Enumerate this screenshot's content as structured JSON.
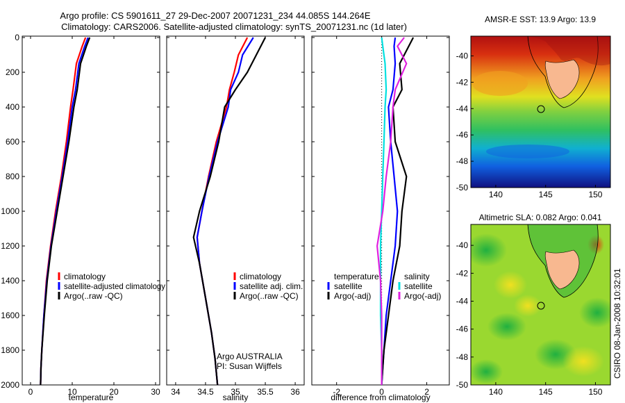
{
  "title_line1": "Argo profile: CS 5901611_27 29-Dec-2007 20071231_234 44.085S 144.264E",
  "title_line2": "Climatology: CARS2006. Satellite-adjusted climatology: synTS_20071231.nc (1d later)",
  "side_label": "CSIRO 08-Jan-2008 10:32:01",
  "colors": {
    "climatology": "#ff0000",
    "satellite": "#0000ff",
    "argo": "#000000",
    "sat_diff_salinity": "#00e0e0",
    "argo_diff_salinity": "#e020e0",
    "land": "#f8b890"
  },
  "chart_data": [
    {
      "type": "line",
      "xlabel": "temperature",
      "xlim": [
        -2,
        31
      ],
      "ylim": [
        0,
        2000
      ],
      "y_reversed": true,
      "xticks": [
        0,
        10,
        20,
        30
      ],
      "yticks": [
        0,
        200,
        400,
        600,
        800,
        1000,
        1200,
        1400,
        1600,
        1800,
        2000
      ],
      "legend": {
        "placement": "lower-right",
        "entries": [
          "climatology",
          "satellite-adjusted climatology",
          "Argo(..raw -QC)"
        ]
      },
      "series": [
        {
          "name": "climatology",
          "color": "#ff0000",
          "x": [
            13.2,
            12.4,
            11.0,
            10.2,
            9.6,
            8.6,
            7.4,
            6.0,
            4.8,
            3.8,
            3.2,
            2.7,
            2.5,
            2.4
          ],
          "y": [
            0,
            50,
            150,
            300,
            400,
            600,
            800,
            1000,
            1200,
            1400,
            1600,
            1800,
            1900,
            2000
          ]
        },
        {
          "name": "satellite-adjusted climatology",
          "color": "#0000ff",
          "x": [
            13.8,
            13.0,
            11.6,
            10.8,
            10.0,
            8.9,
            7.6,
            6.2,
            4.9,
            3.9,
            3.2,
            2.7,
            2.5,
            2.4
          ],
          "y": [
            0,
            50,
            150,
            300,
            400,
            600,
            800,
            1000,
            1200,
            1400,
            1600,
            1800,
            1900,
            2000
          ]
        },
        {
          "name": "Argo(..raw -QC)",
          "color": "#000000",
          "x": [
            14.2,
            13.4,
            12.0,
            11.2,
            10.4,
            9.2,
            7.8,
            6.4,
            5.0,
            4.0,
            3.3,
            2.7,
            2.5,
            2.4
          ],
          "y": [
            0,
            50,
            150,
            300,
            400,
            600,
            800,
            1000,
            1200,
            1400,
            1600,
            1800,
            1900,
            2000
          ]
        }
      ]
    },
    {
      "type": "line",
      "xlabel": "salinity",
      "xlim": [
        33.85,
        36.15
      ],
      "ylim": [
        0,
        2000
      ],
      "y_reversed": true,
      "xticks": [
        34,
        34.5,
        35,
        35.5,
        36
      ],
      "yticks": [
        0,
        200,
        400,
        600,
        800,
        1000,
        1200,
        1400,
        1600,
        1800,
        2000
      ],
      "legend": {
        "placement": "lower-right",
        "entries": [
          "climatology",
          "satellite adj. clim.",
          "Argo(..raw -QC)"
        ]
      },
      "annotation": [
        "Argo AUSTRALIA",
        "PI: Susan Wijffels"
      ],
      "series": [
        {
          "name": "climatology",
          "color": "#ff0000",
          "x": [
            35.2,
            35.05,
            34.98,
            34.9,
            34.85,
            34.68,
            34.55,
            34.44,
            34.36,
            34.4,
            34.5,
            34.6,
            34.66,
            34.7
          ],
          "y": [
            0,
            100,
            200,
            300,
            400,
            600,
            800,
            1000,
            1150,
            1300,
            1500,
            1700,
            1850,
            2000
          ]
        },
        {
          "name": "satellite adj. clim.",
          "color": "#0000ff",
          "x": [
            35.3,
            35.12,
            35.05,
            34.92,
            34.88,
            34.7,
            34.56,
            34.44,
            34.36,
            34.4,
            34.5,
            34.6,
            34.66,
            34.7
          ],
          "y": [
            0,
            100,
            200,
            300,
            400,
            600,
            800,
            1000,
            1150,
            1300,
            1500,
            1700,
            1850,
            2000
          ]
        },
        {
          "name": "Argo(..raw -QC)",
          "color": "#000000",
          "x": [
            35.5,
            35.35,
            35.2,
            35.0,
            34.82,
            34.72,
            34.58,
            34.4,
            34.3,
            34.4,
            34.5,
            34.6,
            34.66,
            34.7
          ],
          "y": [
            0,
            100,
            200,
            300,
            400,
            600,
            800,
            1000,
            1150,
            1300,
            1500,
            1700,
            1850,
            2000
          ]
        }
      ]
    },
    {
      "type": "line",
      "xlabel": "difference from climatology",
      "xlim": [
        -3.1,
        3.0
      ],
      "ylim": [
        0,
        2000
      ],
      "y_reversed": true,
      "xticks": [
        -2,
        0,
        2
      ],
      "yticks": [
        0,
        200,
        400,
        600,
        800,
        1000,
        1200,
        1400,
        1600,
        1800,
        2000
      ],
      "legend": {
        "placement": "lower-center",
        "group_titles": [
          "temperature",
          "salinity"
        ],
        "entries": [
          "satellite",
          "Argo(-adj)",
          "satellite",
          "Argo(-adj)"
        ]
      },
      "series": [
        {
          "name": "temperature satellite",
          "color": "#0000ff",
          "x": [
            0.6,
            0.55,
            0.6,
            0.5,
            0.3,
            0.4,
            0.55,
            0.7,
            0.6,
            0.4,
            0.2,
            0.1,
            0.05,
            0.0
          ],
          "y": [
            0,
            50,
            150,
            300,
            400,
            600,
            800,
            1000,
            1200,
            1400,
            1600,
            1800,
            1900,
            2000
          ]
        },
        {
          "name": "temperature Argo(-adj)",
          "color": "#000000",
          "x": [
            1.4,
            1.2,
            0.8,
            0.9,
            0.5,
            0.6,
            1.1,
            0.9,
            0.8,
            0.5,
            0.3,
            0.1,
            0.05,
            0.0
          ],
          "y": [
            0,
            50,
            150,
            300,
            400,
            600,
            800,
            1000,
            1200,
            1400,
            1600,
            1800,
            1900,
            2000
          ]
        },
        {
          "name": "salinity satellite",
          "color": "#00e0e0",
          "x": [
            0.0,
            0.05,
            0.15,
            0.2,
            0.15,
            0.1,
            0.05,
            0.0,
            -0.05,
            -0.05,
            -0.05,
            0.0,
            0.0,
            0.0
          ],
          "y": [
            0,
            50,
            150,
            300,
            400,
            600,
            800,
            1000,
            1200,
            1400,
            1600,
            1800,
            1900,
            2000
          ]
        },
        {
          "name": "salinity Argo(-adj)",
          "color": "#e020e0",
          "x": [
            1.0,
            0.7,
            1.1,
            0.6,
            0.5,
            0.4,
            0.2,
            0.05,
            -0.2,
            -0.05,
            0.0,
            0.0,
            0.0,
            0.0
          ],
          "y": [
            0,
            50,
            150,
            300,
            400,
            600,
            800,
            1000,
            1200,
            1400,
            1600,
            1800,
            1900,
            2000
          ]
        }
      ]
    },
    {
      "type": "heatmap",
      "title": "AMSR-E SST: 13.9 Argo: 13.9",
      "xlim": [
        137.5,
        151.5
      ],
      "ylim": [
        -50,
        -38.5
      ],
      "xticks": [
        140,
        145,
        150
      ],
      "yticks": [
        -40,
        -42,
        -44,
        -46,
        -48,
        -50
      ],
      "argo_position": [
        144.264,
        -44.085
      ]
    },
    {
      "type": "heatmap",
      "title": "Altimetric SLA: 0.082 Argo: 0.041",
      "xlim": [
        137.5,
        151.5
      ],
      "ylim": [
        -50,
        -38.5
      ],
      "xticks": [
        140,
        145,
        150
      ],
      "yticks": [
        -40,
        -42,
        -44,
        -46,
        -48,
        -50
      ],
      "argo_position": [
        144.264,
        -44.085
      ]
    }
  ]
}
